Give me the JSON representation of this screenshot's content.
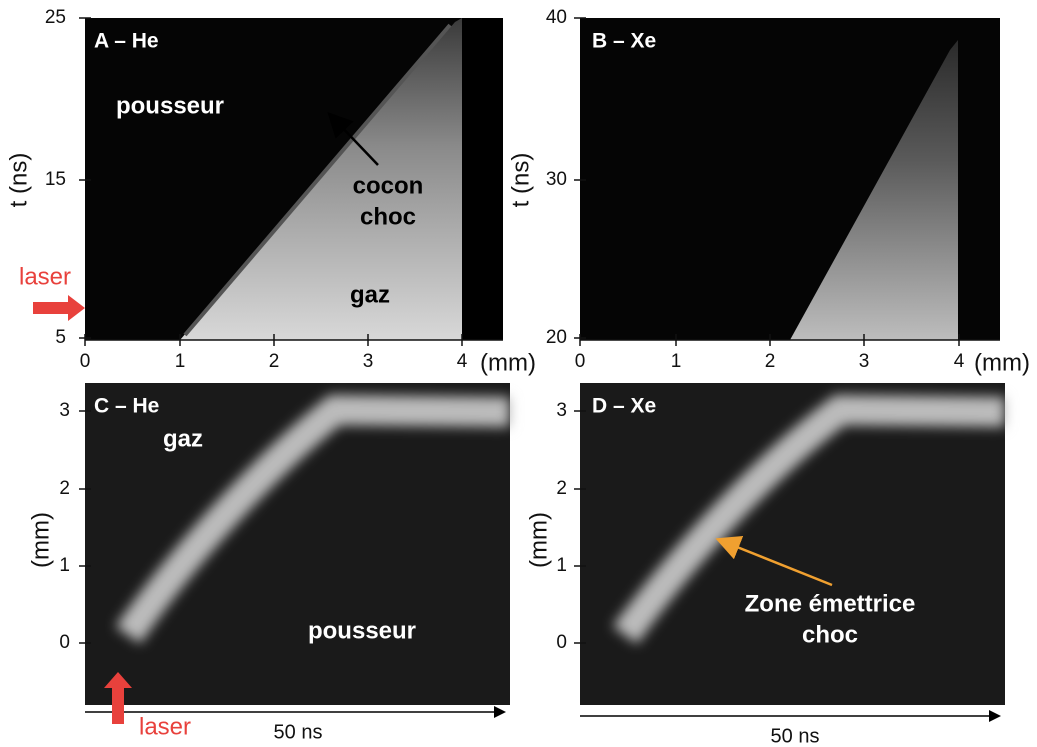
{
  "panels": [
    {
      "label": "A – He",
      "y_label": "t (ns)",
      "x_unit": "(mm)",
      "yticks": [
        "25",
        "15",
        "5"
      ],
      "xticks": [
        "0",
        "1",
        "2",
        "3",
        "4"
      ],
      "annotations": [
        "pousseur",
        "cocon",
        "choc",
        "gaz"
      ]
    },
    {
      "label": "B – Xe",
      "y_label": "t (ns)",
      "x_unit": "(mm)",
      "yticks": [
        "40",
        "30",
        "20"
      ],
      "xticks": [
        "0",
        "1",
        "2",
        "3",
        "4"
      ]
    },
    {
      "label": "C – He",
      "y_label": "(mm)",
      "x_label": "50 ns",
      "yticks": [
        "3",
        "2",
        "1",
        "0"
      ],
      "annotations": [
        "gaz",
        "pousseur"
      ]
    },
    {
      "label": "D – Xe",
      "y_label": "(mm)",
      "x_label": "50 ns",
      "yticks": [
        "3",
        "2",
        "1",
        "0"
      ],
      "annotations": [
        "Zone émettrice",
        "choc"
      ]
    }
  ],
  "laser": [
    "laser",
    "laser"
  ]
}
